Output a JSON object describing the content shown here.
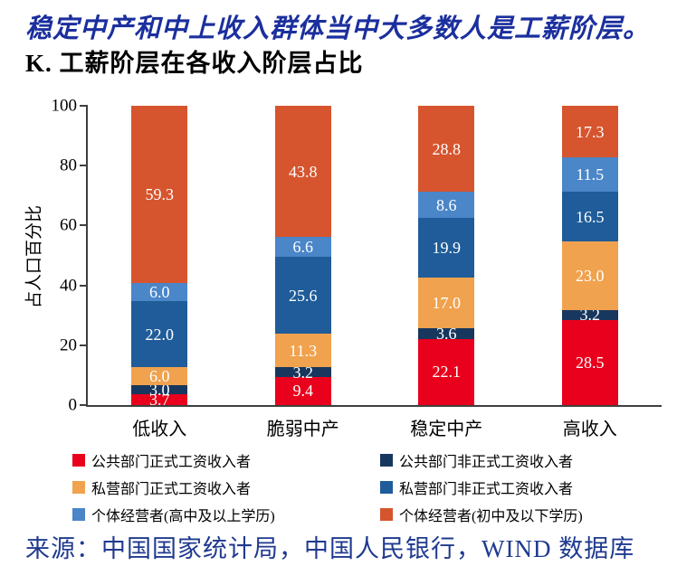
{
  "header": {
    "title": "稳定中产和中上收入群体当中大多数人是工薪阶层。",
    "subtitle": "K. 工薪阶层在各收入阶层占比"
  },
  "chart_data": {
    "type": "bar",
    "stacked": true,
    "title": "K. 工薪阶层在各收入阶层占比",
    "categories": [
      "低收入",
      "脆弱中产",
      "稳定中产",
      "高收入"
    ],
    "series": [
      {
        "name": "公共部门正式工资收入者",
        "color": "#e8001c",
        "values": [
          3.7,
          9.4,
          22.1,
          28.5
        ]
      },
      {
        "name": "公共部门非正式工资收入者",
        "color": "#17375e",
        "values": [
          3.0,
          3.2,
          3.6,
          3.2
        ]
      },
      {
        "name": "私营部门正式工资收入者",
        "color": "#f0a24e",
        "values": [
          6.0,
          11.3,
          17.0,
          23.0
        ]
      },
      {
        "name": "私营部门非正式工资收入者",
        "color": "#1f5c99",
        "values": [
          22.0,
          25.6,
          19.9,
          16.5
        ]
      },
      {
        "name": "个体经营者(高中及以上学历)",
        "color": "#4a86c8",
        "values": [
          6.0,
          6.6,
          8.6,
          11.5
        ]
      },
      {
        "name": "个体经营者(初中及以下学历)",
        "color": "#d6552e",
        "values": [
          59.3,
          43.8,
          28.8,
          17.3
        ]
      }
    ],
    "xlabel": "",
    "ylabel": "占人口百分比",
    "ylim": [
      0,
      100
    ],
    "yticks": [
      0,
      20,
      40,
      60,
      80,
      100
    ],
    "value_labels": true,
    "grid": false,
    "legend_position": "bottom"
  },
  "colors": {
    "title": "#1b2f9e",
    "source": "#1f3a8f",
    "axis": "#3f3f3f",
    "value_label_text": "#ffffff"
  },
  "source": "来源：中国国家统计局，中国人民银行，WIND 数据库"
}
